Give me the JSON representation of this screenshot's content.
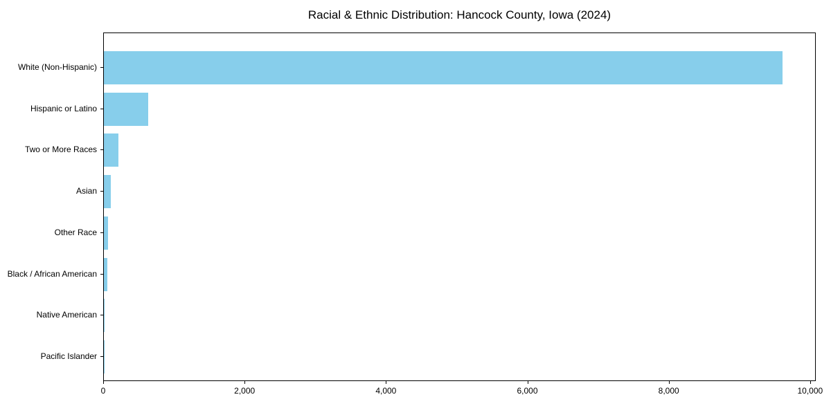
{
  "chart_data": {
    "type": "bar",
    "orientation": "horizontal",
    "title": "Racial & Ethnic Distribution: Hancock County, Iowa (2024)",
    "xlabel": "",
    "ylabel": "",
    "categories": [
      "White (Non-Hispanic)",
      "Hispanic or Latino",
      "Two or More Races",
      "Asian",
      "Other Race",
      "Black / African American",
      "Native American",
      "Pacific Islander"
    ],
    "values": [
      9600,
      630,
      205,
      100,
      60,
      47,
      14,
      4
    ],
    "xlim": [
      0,
      10080
    ],
    "xticks": [
      0,
      2000,
      4000,
      6000,
      8000,
      10000
    ],
    "xtick_labels": [
      "0",
      "2,000",
      "4,000",
      "6,000",
      "8,000",
      "10,000"
    ],
    "bar_color": "#87CEEB",
    "axis_color": "#000000",
    "background": "#FFFFFF",
    "grid": false,
    "legend": null
  }
}
